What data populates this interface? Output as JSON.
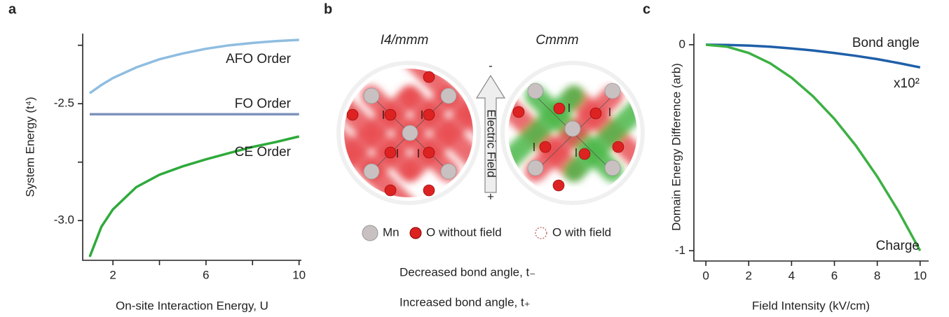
{
  "chart_data": [
    {
      "type": "line",
      "panel": "a",
      "x_label": "On-site Interaction Energy, U",
      "y_label": "System Energy (t⁴)",
      "x": [
        1,
        1.5,
        2,
        3,
        4,
        5,
        6,
        7,
        8,
        9,
        10
      ],
      "series": [
        {
          "name": "AFO Order",
          "color": "#8fbde0",
          "values": [
            -2.455,
            -2.42,
            -2.39,
            -2.345,
            -2.31,
            -2.285,
            -2.265,
            -2.25,
            -2.24,
            -2.232,
            -2.227
          ]
        },
        {
          "name": "FO Order",
          "color": "#7f93bc",
          "values": [
            -2.545,
            -2.545,
            -2.545,
            -2.545,
            -2.545,
            -2.545,
            -2.545,
            -2.545,
            -2.545,
            -2.545,
            -2.545
          ]
        },
        {
          "name": "CE Order",
          "color": "#2eaa3a",
          "values": [
            -3.155,
            -3.027,
            -2.952,
            -2.857,
            -2.804,
            -2.768,
            -2.738,
            -2.711,
            -2.685,
            -2.664,
            -2.64
          ]
        }
      ],
      "xlim": [
        0.7,
        10.1
      ],
      "ylim": [
        -3.17,
        -2.2
      ],
      "xticks": [
        2,
        6,
        10
      ],
      "xminor": [
        4,
        8
      ],
      "yticks": [
        {
          "value": -3,
          "label": "-3.0"
        },
        {
          "value": -2.5,
          "label": "-2.5"
        }
      ],
      "yminor": [
        -2.75,
        -2.25
      ]
    },
    {
      "type": "line",
      "panel": "c",
      "x_label": "Field Intensity (kV/cm)",
      "y_label": "Domain Energy Difference (arb)",
      "x": [
        0,
        1,
        2,
        3,
        4,
        5,
        6,
        7,
        8,
        9,
        10
      ],
      "series": [
        {
          "name": "Bond angle",
          "color": "#1f5fa8",
          "values": [
            0,
            -0.001,
            -0.004,
            -0.01,
            -0.018,
            -0.028,
            -0.04,
            -0.054,
            -0.07,
            -0.089,
            -0.11
          ]
        },
        {
          "name": "Charge",
          "color": "#3cb043",
          "values": [
            0,
            -0.01,
            -0.04,
            -0.09,
            -0.16,
            -0.25,
            -0.36,
            -0.49,
            -0.64,
            -0.81,
            -1
          ]
        }
      ],
      "annotation": "x10²",
      "xlim": [
        -0.56,
        10.4
      ],
      "ylim": [
        -1.05,
        0.054
      ],
      "xticks": [
        0,
        2,
        4,
        6,
        8,
        10
      ],
      "yticks": [
        -1,
        0
      ]
    }
  ],
  "diagram": {
    "panel": "b",
    "left_title": "I4/mmm",
    "right_title": "Cmmm",
    "field_label": "Electric Field",
    "field_top": "-",
    "field_bottom": "+",
    "legend": [
      "Mn",
      "O without field",
      "O with field",
      "Decreased bond angle, t₋",
      "Increased bond angle, t₊"
    ]
  }
}
